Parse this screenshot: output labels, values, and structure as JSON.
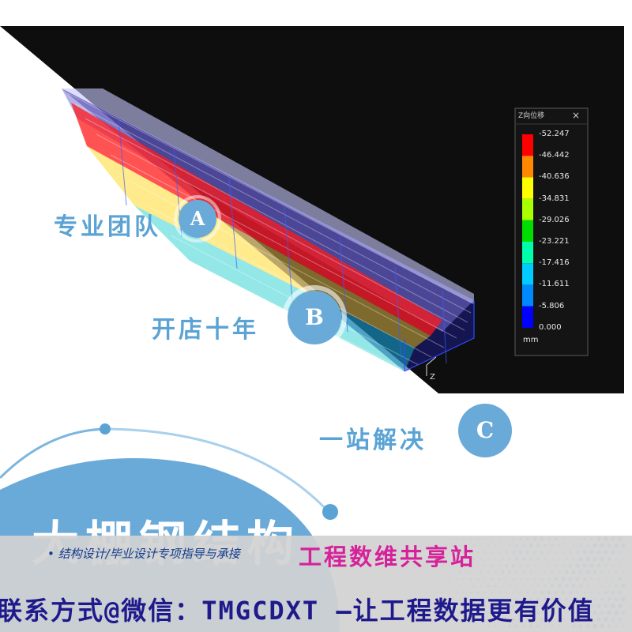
{
  "legend": {
    "title": "Z向位移",
    "close_icon": "×",
    "unit": "mm",
    "levels": [
      "-52.247",
      "-46.442",
      "-40.636",
      "-34.831",
      "-29.026",
      "-23.221",
      "-17.416",
      "-11.611",
      "-5.806",
      "0.000"
    ],
    "colors": [
      "#ff0000",
      "#ff8800",
      "#ffff00",
      "#aaff00",
      "#00dd00",
      "#00ffaa",
      "#00ccff",
      "#0088ff",
      "#0000ff"
    ]
  },
  "axis": {
    "z_label": "Z"
  },
  "features": [
    {
      "text": "专业团队",
      "badge": "A"
    },
    {
      "text": "开店十年",
      "badge": "B"
    },
    {
      "text": "一站解决",
      "badge": "C"
    }
  ],
  "title": "大棚钢结构",
  "banner": {
    "line1": "• 结构设计/毕业设计专项指导与承接",
    "brand": "工程数维共享站",
    "line2": "联系方式@微信：TMGCDXT —让工程数据更有价值"
  },
  "colors": {
    "accent": "#5aa3d4",
    "badge": "#6aaad8",
    "brand": "#d6229a",
    "contact": "#1f1a8c"
  }
}
